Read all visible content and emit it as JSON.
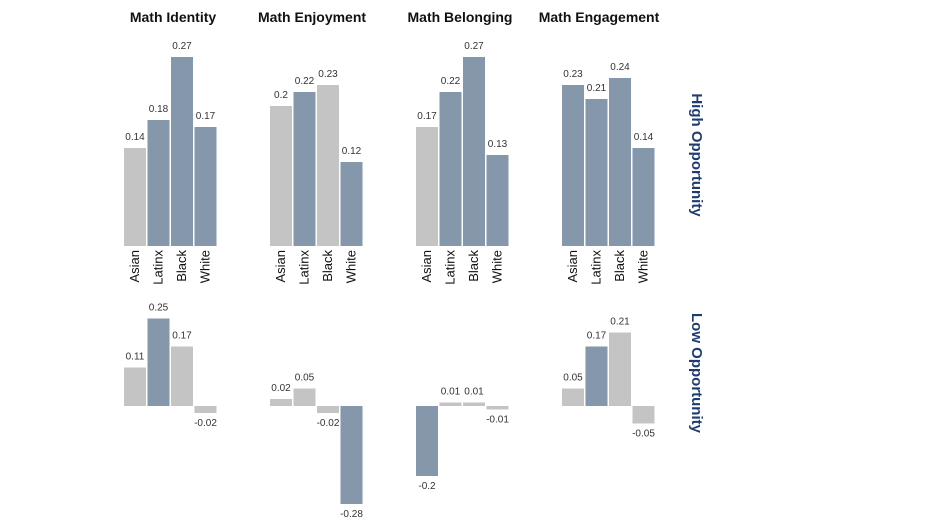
{
  "chart_data": {
    "type": "bar",
    "titles": [
      "Math Identity",
      "Math Enjoyment",
      "Math Belonging",
      "Math Engagement"
    ],
    "categories": [
      "Asian",
      "Latinx",
      "Black",
      "White"
    ],
    "rows": [
      {
        "name": "High Opportunity",
        "panels": [
          {
            "values": [
              0.14,
              0.18,
              0.27,
              0.17
            ],
            "labels": [
              "0.14",
              "0.18",
              "0.27",
              "0.17"
            ],
            "highlight": [
              false,
              true,
              true,
              true
            ]
          },
          {
            "values": [
              0.2,
              0.22,
              0.23,
              0.12
            ],
            "labels": [
              "0.2",
              "0.22",
              "0.23",
              "0.12"
            ],
            "highlight": [
              false,
              true,
              false,
              true
            ]
          },
          {
            "values": [
              0.17,
              0.22,
              0.27,
              0.13
            ],
            "labels": [
              "0.17",
              "0.22",
              "0.27",
              "0.13"
            ],
            "highlight": [
              false,
              true,
              true,
              true
            ]
          },
          {
            "values": [
              0.23,
              0.21,
              0.24,
              0.14
            ],
            "labels": [
              "0.23",
              "0.21",
              "0.24",
              "0.14"
            ],
            "highlight": [
              true,
              true,
              true,
              true
            ]
          }
        ]
      },
      {
        "name": "Low Opportunity",
        "panels": [
          {
            "values": [
              0.11,
              0.25,
              0.17,
              -0.02
            ],
            "labels": [
              "0.11",
              "0.25",
              "0.17",
              "-0.02"
            ],
            "highlight": [
              false,
              true,
              false,
              false
            ]
          },
          {
            "values": [
              0.02,
              0.05,
              -0.02,
              -0.28
            ],
            "labels": [
              "0.02",
              "0.05",
              "-0.02",
              "-0.28"
            ],
            "highlight": [
              false,
              false,
              false,
              true
            ]
          },
          {
            "values": [
              -0.2,
              0.01,
              0.01,
              -0.01
            ],
            "labels": [
              "-0.2",
              "0.01",
              "0.01",
              "-0.01"
            ],
            "highlight": [
              true,
              false,
              false,
              false
            ]
          },
          {
            "values": [
              0.05,
              0.17,
              0.21,
              -0.05
            ],
            "labels": [
              "0.05",
              "0.17",
              "0.21",
              "-0.05"
            ],
            "highlight": [
              false,
              true,
              false,
              false
            ]
          }
        ]
      }
    ],
    "colors": {
      "highlight": "#8497ab",
      "muted": "#c4c4c4",
      "row_label": "#1f3b73"
    },
    "grid": false,
    "legend": "none"
  }
}
